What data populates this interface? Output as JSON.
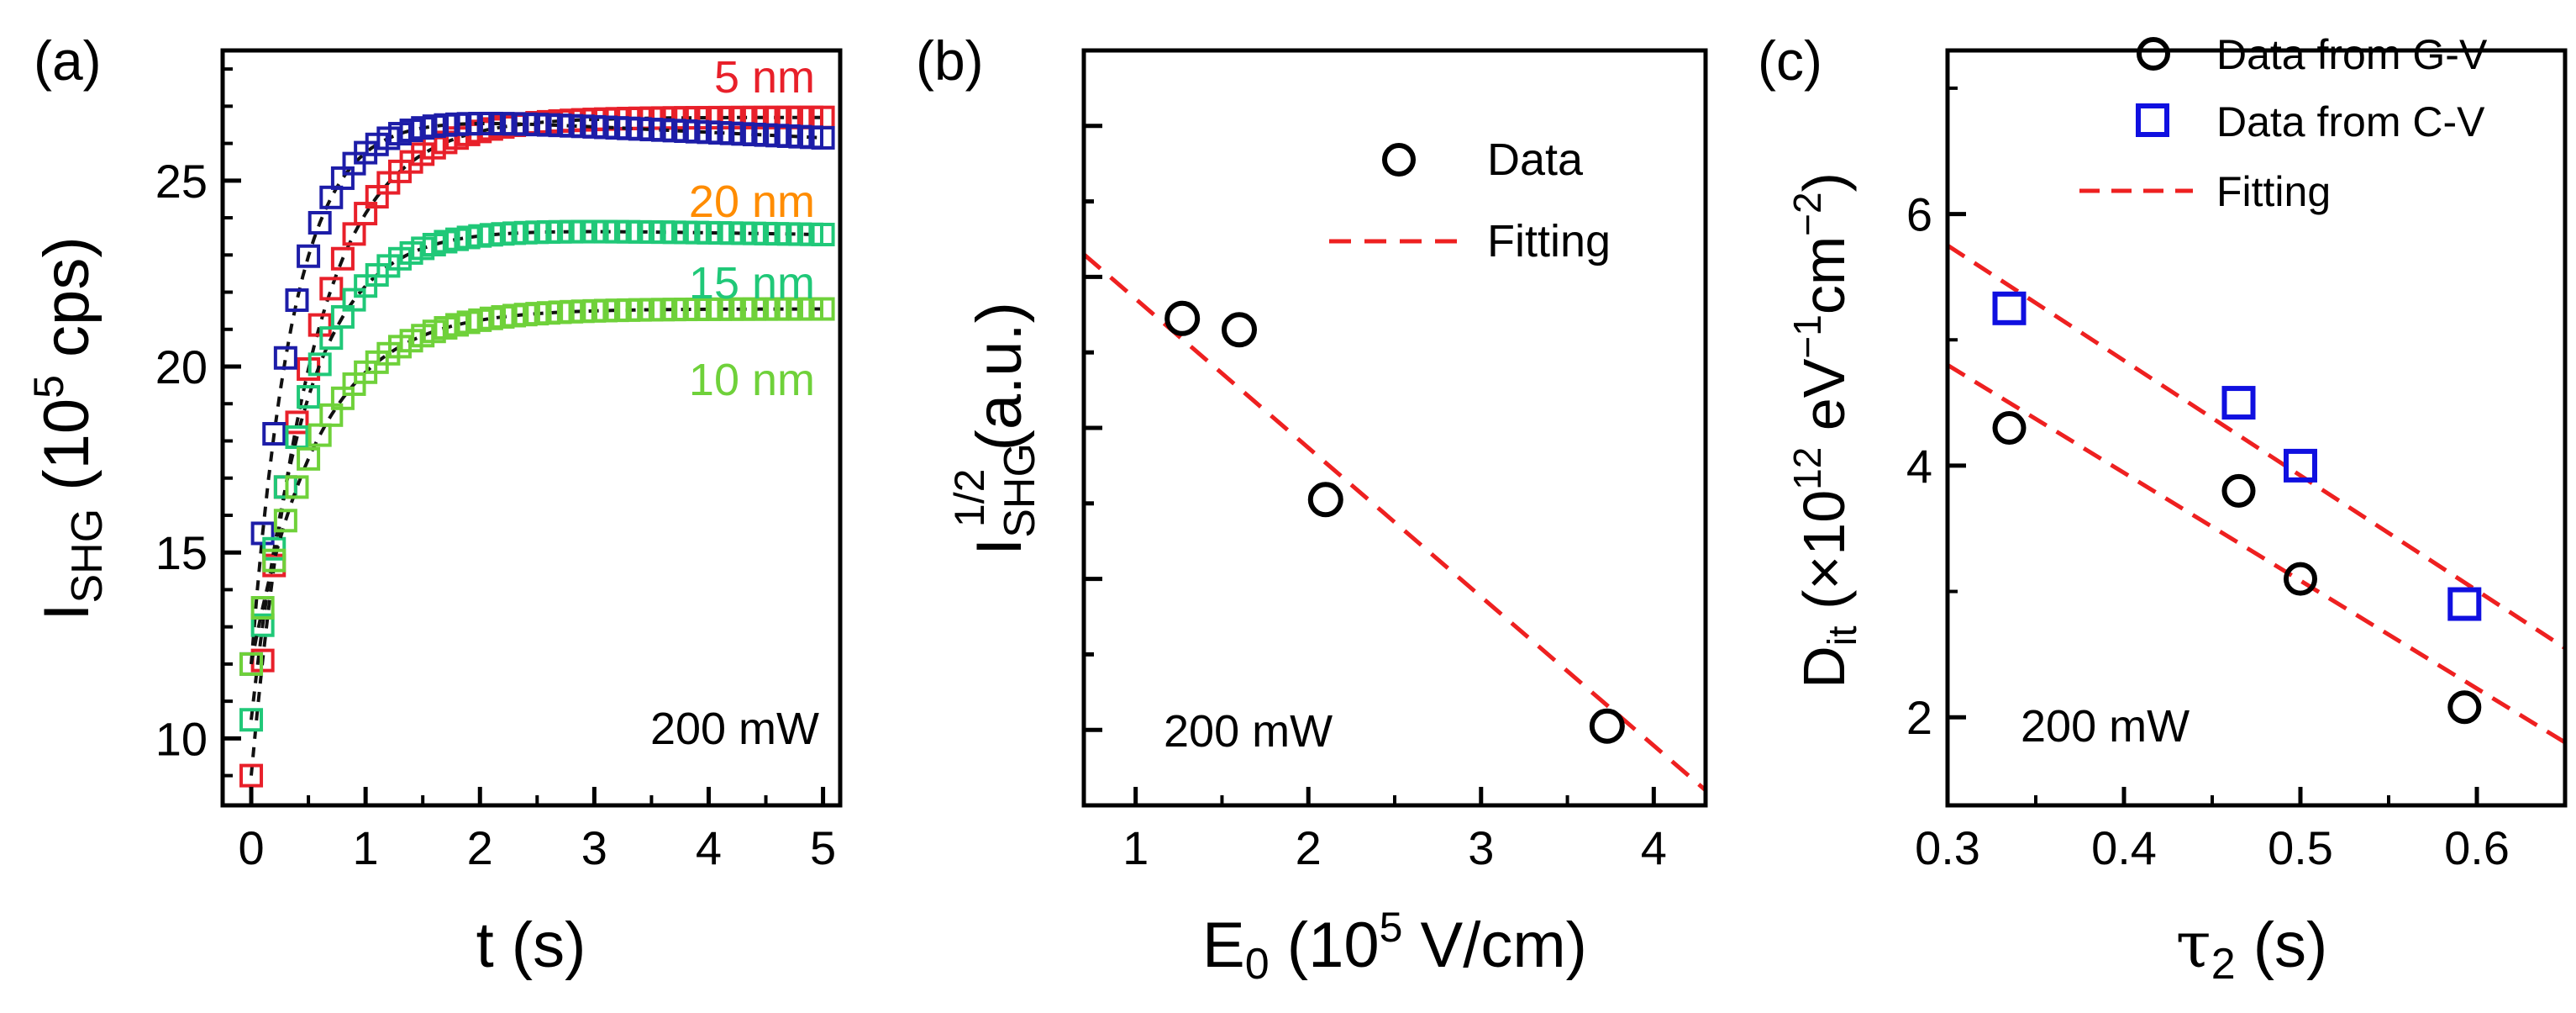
{
  "figure": {
    "panel_a_label": "(a)",
    "panel_b_label": "(b)",
    "panel_c_label": "(c)",
    "colors": {
      "nm5": "#e8202a",
      "nm10": "#6fd13a",
      "nm15": "#20c878",
      "nm20": "#1d1da8",
      "label20": "#ff8c00",
      "blue": "#1010e0",
      "fit": "#ee2020"
    }
  },
  "chart_data": [
    {
      "panel": "a",
      "type": "scatter",
      "title": "",
      "xlabel": "t (s)",
      "ylabel_main": "I",
      "ylabel_sub": "SHG",
      "ylabel_rest": " (10",
      "ylabel_sup": "5",
      "ylabel_end": " cps)",
      "xlim": [
        -0.25,
        5.15
      ],
      "ylim": [
        8.2,
        28.5
      ],
      "xticks": [
        0,
        1,
        2,
        3,
        4,
        5
      ],
      "yticks": [
        10,
        15,
        20,
        25
      ],
      "annotation": "200 mW",
      "series": [
        {
          "name": "5 nm",
          "color": "#e8202a",
          "y0": 9.0,
          "A": 17.7,
          "tau": 0.52,
          "droop": 0.0
        },
        {
          "name": "20 nm",
          "color": "#1d1da8",
          "y0": 12.0,
          "A": 14.9,
          "tau": 0.37,
          "droop": 0.15
        },
        {
          "name": "15 nm",
          "color": "#20c878",
          "y0": 10.5,
          "A": 13.3,
          "tau": 0.47,
          "droop": 0.05
        },
        {
          "name": "10 nm",
          "color": "#6fd13a",
          "y0": 12.0,
          "A": 9.55,
          "tau": 0.58,
          "droop": 0.0
        }
      ]
    },
    {
      "panel": "b",
      "type": "scatter",
      "xlabel_main": "E",
      "xlabel_sub": "0",
      "xlabel_rest": " (10",
      "xlabel_sup": "5",
      "xlabel_end": " V/cm)",
      "ylabel_main": "I",
      "ylabel_sub": "SHG",
      "ylabel_sup": "1/2",
      "ylabel_end": " (a.u.)",
      "xlim": [
        0.7,
        4.3
      ],
      "ylim": [
        0,
        10
      ],
      "xticks": [
        1,
        2,
        3,
        4
      ],
      "annotation": "200 mW",
      "data": {
        "x": [
          1.27,
          1.6,
          2.1,
          3.73
        ],
        "y": [
          6.45,
          6.3,
          4.05,
          1.05
        ]
      },
      "fit": {
        "x": [
          0.7,
          4.3
        ],
        "y": [
          7.3,
          0.2
        ]
      },
      "legend": [
        "Data",
        "Fitting"
      ]
    },
    {
      "panel": "c",
      "type": "scatter",
      "xlabel_main": "τ",
      "xlabel_sub": "2",
      "xlabel_end": " (s)",
      "ylabel_main": "D",
      "ylabel_sub": "it",
      "ylabel_rest": " (×10",
      "ylabel_sup1": "12",
      "ylabel_mid": " eV",
      "ylabel_sup2": "−1",
      "ylabel_mid2": "cm",
      "ylabel_sup3": "−2",
      "ylabel_end": ")",
      "xlim": [
        0.3,
        0.65
      ],
      "ylim": [
        1.3,
        7.3
      ],
      "xticks": [
        0.3,
        0.4,
        0.5,
        0.6
      ],
      "yticks": [
        2,
        4,
        6
      ],
      "annotation": "200 mW",
      "series": [
        {
          "name": "Data from G-V",
          "marker": "circle",
          "x": [
            0.335,
            0.465,
            0.5,
            0.593
          ],
          "y": [
            4.3,
            3.8,
            3.1,
            2.08
          ]
        },
        {
          "name": "Data from C-V",
          "marker": "square",
          "x": [
            0.335,
            0.465,
            0.5,
            0.593
          ],
          "y": [
            5.25,
            4.5,
            4.0,
            2.9
          ]
        }
      ],
      "fits": [
        {
          "x": [
            0.3,
            0.65
          ],
          "y": [
            4.8,
            1.8
          ]
        },
        {
          "x": [
            0.3,
            0.65
          ],
          "y": [
            5.75,
            2.55
          ]
        }
      ],
      "legend": [
        "Data from G-V",
        "Data from C-V",
        "Fitting"
      ]
    }
  ]
}
